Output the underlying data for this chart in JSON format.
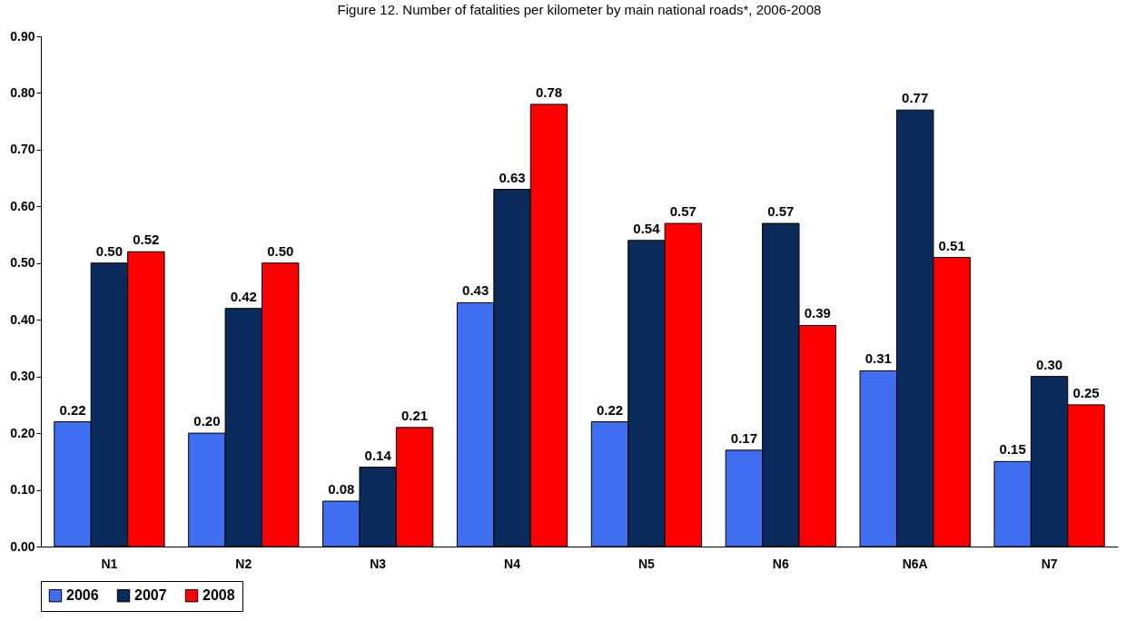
{
  "chart_data": {
    "type": "bar",
    "title": "Figure 12. Number of fatalities per kilometer by main national roads*, 2006-2008",
    "categories": [
      "N1",
      "N2",
      "N3",
      "N4",
      "N5",
      "N6",
      "N6A",
      "N7"
    ],
    "series": [
      {
        "name": "2006",
        "color": "#3f6ef0",
        "values": [
          0.22,
          0.2,
          0.08,
          0.43,
          0.22,
          0.17,
          0.31,
          0.15
        ],
        "value_labels": [
          "0.22",
          "0.20",
          "0.08",
          "0.43",
          "0.22",
          "0.17",
          "0.31",
          "0.15"
        ]
      },
      {
        "name": "2007",
        "color": "#0a2a5c",
        "values": [
          0.5,
          0.42,
          0.14,
          0.63,
          0.54,
          0.57,
          0.77,
          0.3
        ],
        "value_labels": [
          "0.50",
          "0.42",
          "0.14",
          "0.63",
          "0.54",
          "0.57",
          "0.77",
          "0.30"
        ]
      },
      {
        "name": "2008",
        "color": "#ff0000",
        "values": [
          0.52,
          0.5,
          0.21,
          0.78,
          0.57,
          0.39,
          0.51,
          0.25
        ],
        "value_labels": [
          "0.52",
          "0.50",
          "0.21",
          "0.78",
          "0.57",
          "0.39",
          "0.51",
          "0.25"
        ]
      }
    ],
    "ylim": [
      0,
      0.9
    ],
    "yticks": [
      {
        "value": 0,
        "label": "0.00"
      },
      {
        "value": 0.1,
        "label": "0.10"
      },
      {
        "value": 0.2,
        "label": "0.20"
      },
      {
        "value": 0.3,
        "label": "0.30"
      },
      {
        "value": 0.4,
        "label": "0.40"
      },
      {
        "value": 0.5,
        "label": "0.50"
      },
      {
        "value": 0.6,
        "label": "0.60"
      },
      {
        "value": 0.7,
        "label": "0.70"
      },
      {
        "value": 0.8,
        "label": "0.80"
      },
      {
        "value": 0.9,
        "label": "0.90"
      }
    ],
    "grid": false,
    "legend": "bottom"
  }
}
